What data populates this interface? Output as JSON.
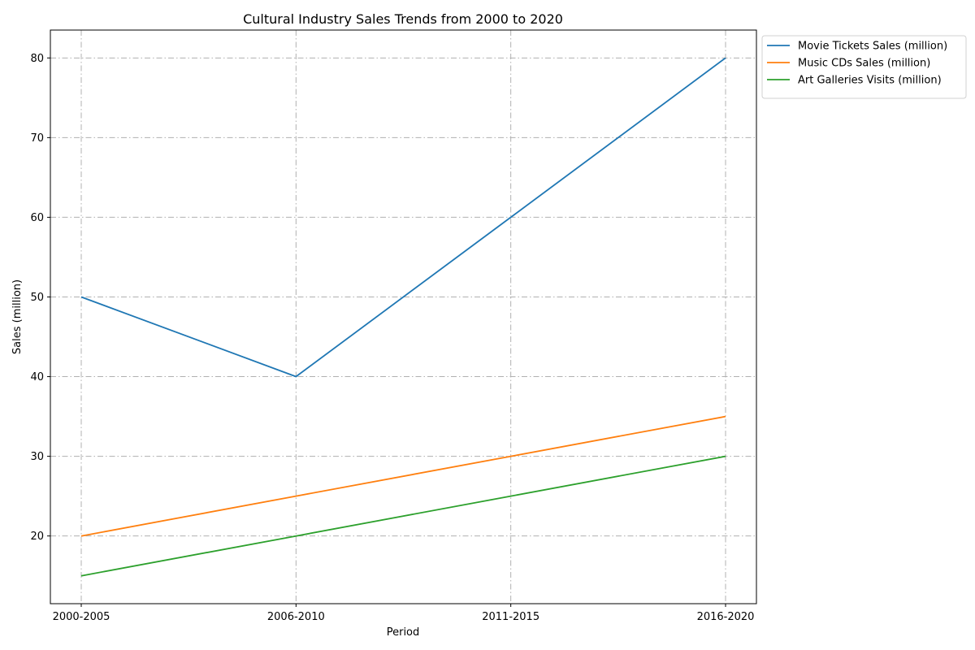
{
  "chart_data": {
    "type": "line",
    "title": "Cultural Industry Sales Trends from 2000 to 2020",
    "xlabel": "Period",
    "ylabel": "Sales (million)",
    "categories": [
      "2000-2005",
      "2006-2010",
      "2011-2015",
      "2016-2020"
    ],
    "ylim": [
      11.5,
      83.5
    ],
    "yticks": [
      20,
      30,
      40,
      50,
      60,
      70,
      80
    ],
    "grid": true,
    "legend_position": "outside-top-right",
    "series": [
      {
        "name": "Movie Tickets Sales (million)",
        "values": [
          50,
          40,
          60,
          80
        ],
        "color": "#1f77b4"
      },
      {
        "name": "Music CDs Sales (million)",
        "values": [
          20,
          25,
          30,
          35
        ],
        "color": "#ff7f0e"
      },
      {
        "name": "Art Galleries Visits (million)",
        "values": [
          15,
          20,
          25,
          30
        ],
        "color": "#2ca02c"
      }
    ]
  }
}
